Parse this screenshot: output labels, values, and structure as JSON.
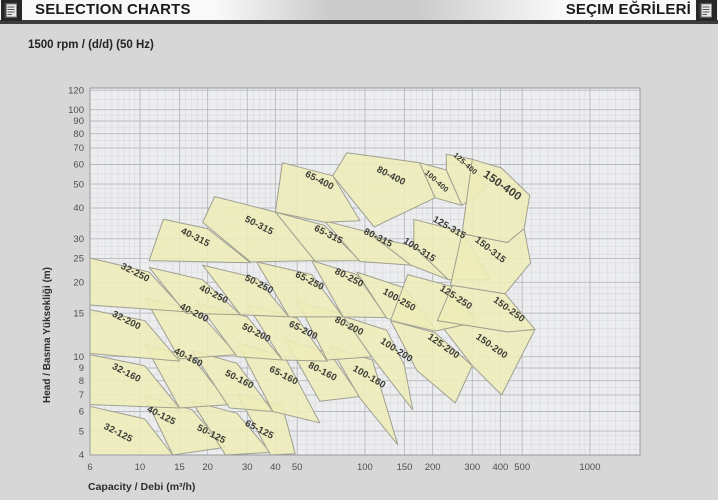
{
  "header": {
    "left_title": "SELECTION CHARTS",
    "right_title": "SEÇIM EĞRİLERİ",
    "left_icon": "document-chart-icon",
    "right_icon": "document-chart-icon"
  },
  "subtitle": "1500 rpm / (d/d) (50 Hz)",
  "colors": {
    "page_bg": "#d7d7d8",
    "plot_bg": "#ecedef",
    "grid_minor": "#d8d9dc",
    "grid_major": "#b9babd",
    "plot_border": "#9a9a9e",
    "region_fill": "#eeedb9",
    "region_stroke": "#a0a091",
    "region_label": "#3b3b35",
    "tick_label": "#4f4f4f",
    "axis_title": "#2e2e2e",
    "header_bar": "#3c3c3c"
  },
  "chart_data": {
    "type": "area",
    "title": "Pump selection chart 1500 rpm 50 Hz",
    "xlabel": "Capacity / Debi (m³/h)",
    "ylabel": "Head / Basma Yüksekliği (m)",
    "x_scale": "log",
    "y_scale": "log",
    "xlim": [
      6,
      1670
    ],
    "ylim": [
      3.93,
      122
    ],
    "grid": "on",
    "x_ticks": [
      6,
      10,
      15,
      20,
      30,
      40,
      50,
      100,
      150,
      200,
      300,
      400,
      500,
      1000
    ],
    "y_ticks": [
      4,
      5,
      6,
      7,
      8,
      9,
      10,
      15,
      20,
      25,
      30,
      40,
      50,
      60,
      70,
      80,
      90,
      100,
      120
    ],
    "regions": [
      {
        "label": "32-125",
        "points": [
          [
            6,
            6.3
          ],
          [
            10.5,
            5.6
          ],
          [
            14,
            4.0
          ],
          [
            6,
            4.0
          ]
        ],
        "label_at": [
          7.9,
          4.8
        ]
      },
      {
        "label": "40-125",
        "points": [
          [
            10.5,
            6.9
          ],
          [
            17,
            6.1
          ],
          [
            24,
            4.3
          ],
          [
            14,
            4.0
          ]
        ],
        "label_at": [
          12.3,
          5.65
        ]
      },
      {
        "label": "50-125",
        "points": [
          [
            17,
            6.6
          ],
          [
            27,
            5.9
          ],
          [
            38,
            4.1
          ],
          [
            24,
            4.0
          ]
        ],
        "label_at": [
          20.5,
          4.75
        ]
      },
      {
        "label": "65-125",
        "points": [
          [
            27,
            7.1
          ],
          [
            43,
            6.3
          ],
          [
            49,
            4.05
          ],
          [
            38,
            4.0
          ]
        ],
        "label_at": [
          33.5,
          4.95
        ]
      },
      {
        "label": "32-160",
        "points": [
          [
            6,
            10.2
          ],
          [
            10.5,
            9.2
          ],
          [
            15,
            6.2
          ],
          [
            6,
            6.4
          ]
        ],
        "label_at": [
          8.6,
          8.4
        ]
      },
      {
        "label": "40-160",
        "points": [
          [
            10.5,
            11.2
          ],
          [
            17,
            10.0
          ],
          [
            25,
            6.4
          ],
          [
            15,
            6.2
          ]
        ],
        "label_at": [
          16.2,
          9.7
        ]
      },
      {
        "label": "50-160",
        "points": [
          [
            17,
            10.6
          ],
          [
            27,
            9.4
          ],
          [
            39,
            6.0
          ],
          [
            25,
            6.2
          ]
        ],
        "label_at": [
          27.3,
          7.9
        ]
      },
      {
        "label": "65-160",
        "points": [
          [
            27,
            11.4
          ],
          [
            44,
            10.0
          ],
          [
            63,
            5.4
          ],
          [
            39,
            6.0
          ]
        ],
        "label_at": [
          43,
          8.2
        ]
      },
      {
        "label": "80-160",
        "points": [
          [
            44,
            11.8
          ],
          [
            70,
            10.3
          ],
          [
            95,
            6.9
          ],
          [
            63,
            6.6
          ]
        ],
        "label_at": [
          64,
          8.5
        ]
      },
      {
        "label": "100-160",
        "points": [
          [
            70,
            11.0
          ],
          [
            108,
            9.7
          ],
          [
            140,
            4.4
          ],
          [
            95,
            6.8
          ]
        ],
        "label_at": [
          103,
          8.1
        ],
        "angle": 30
      },
      {
        "label": "32-200",
        "points": [
          [
            6,
            15.5
          ],
          [
            10.5,
            14.0
          ],
          [
            15,
            9.6
          ],
          [
            6,
            10.3
          ]
        ],
        "label_at": [
          8.6,
          13.7
        ]
      },
      {
        "label": "40-200",
        "points": [
          [
            10.5,
            17.3
          ],
          [
            18,
            15.3
          ],
          [
            27,
            10.2
          ],
          [
            15,
            9.8
          ]
        ],
        "label_at": [
          17.2,
          14.7
        ]
      },
      {
        "label": "50-200",
        "points": [
          [
            18,
            16.5
          ],
          [
            30,
            14.5
          ],
          [
            43,
            9.7
          ],
          [
            27,
            10.0
          ]
        ],
        "label_at": [
          32.5,
          12.2
        ]
      },
      {
        "label": "65-200",
        "points": [
          [
            30,
            16.2
          ],
          [
            50,
            14.3
          ],
          [
            68,
            9.6
          ],
          [
            43,
            9.7
          ]
        ],
        "label_at": [
          52.5,
          12.5
        ]
      },
      {
        "label": "80-200",
        "points": [
          [
            50,
            16.8
          ],
          [
            80,
            14.8
          ],
          [
            108,
            10.0
          ],
          [
            68,
            9.7
          ]
        ],
        "label_at": [
          84,
          13.0
        ]
      },
      {
        "label": "100-200",
        "points": [
          [
            80,
            14.6
          ],
          [
            125,
            12.8
          ],
          [
            150,
            9.2
          ],
          [
            163,
            6.1
          ],
          [
            108,
            9.9
          ]
        ],
        "label_at": [
          136,
          10.4
        ],
        "angle": 33
      },
      {
        "label": "125-200",
        "points": [
          [
            130,
            14.0
          ],
          [
            205,
            12.5
          ],
          [
            300,
            9.2
          ],
          [
            252,
            6.5
          ],
          [
            170,
            8.8
          ]
        ],
        "label_at": [
          220,
          10.8
        ],
        "angle": 35
      },
      {
        "label": "150-200",
        "points": [
          [
            210,
            14.0
          ],
          [
            430,
            12.6
          ],
          [
            570,
            12.9
          ],
          [
            405,
            7.0
          ],
          [
            300,
            9.2
          ]
        ],
        "label_at": [
          360,
          10.8
        ],
        "angle": 35
      },
      {
        "label": "32-250",
        "points": [
          [
            6,
            25.1
          ],
          [
            11,
            22.0
          ],
          [
            16,
            15.2
          ],
          [
            6,
            16.2
          ]
        ],
        "label_at": [
          9.4,
          21.4
        ]
      },
      {
        "label": "40-250",
        "points": [
          [
            11,
            23.0
          ],
          [
            19,
            20.5
          ],
          [
            28,
            14.8
          ],
          [
            16,
            15.0
          ]
        ],
        "label_at": [
          21,
          17.5
        ]
      },
      {
        "label": "50-250",
        "points": [
          [
            19,
            23.5
          ],
          [
            33,
            20.8
          ],
          [
            46,
            14.5
          ],
          [
            28,
            14.8
          ]
        ],
        "label_at": [
          33.4,
          19.2
        ]
      },
      {
        "label": "65-250",
        "points": [
          [
            33,
            24.2
          ],
          [
            58,
            21.5
          ],
          [
            80,
            14.5
          ],
          [
            46,
            14.5
          ]
        ],
        "label_at": [
          56,
          19.8
        ]
      },
      {
        "label": "80-250",
        "points": [
          [
            58,
            24.5
          ],
          [
            92,
            21.5
          ],
          [
            125,
            14.4
          ],
          [
            80,
            14.5
          ]
        ],
        "label_at": [
          84,
          20.4
        ]
      },
      {
        "label": "100-250",
        "points": [
          [
            92,
            22.0
          ],
          [
            150,
            19.0
          ],
          [
            205,
            12.9
          ],
          [
            125,
            14.3
          ]
        ],
        "label_at": [
          140,
          16.6
        ],
        "angle": 30
      },
      {
        "label": "125-250",
        "points": [
          [
            155,
            21.5
          ],
          [
            245,
            19.2
          ],
          [
            310,
            13.8
          ],
          [
            205,
            12.7
          ],
          [
            130,
            14.0
          ]
        ],
        "label_at": [
          250,
          17.0
        ],
        "angle": 33
      },
      {
        "label": "150-250",
        "points": [
          [
            245,
            19.5
          ],
          [
            420,
            18.0
          ],
          [
            570,
            12.9
          ],
          [
            430,
            12.6
          ],
          [
            210,
            14.0
          ]
        ],
        "label_at": [
          430,
          15.2
        ],
        "angle": 36
      },
      {
        "label": "40-315",
        "points": [
          [
            12.7,
            36
          ],
          [
            20,
            33
          ],
          [
            31,
            24
          ],
          [
            11,
            24.5
          ]
        ],
        "label_at": [
          17.4,
          29.7
        ]
      },
      {
        "label": "50-315",
        "points": [
          [
            21.5,
            44.5
          ],
          [
            40,
            38.5
          ],
          [
            60,
            24.5
          ],
          [
            31,
            24.2
          ],
          [
            19,
            35
          ]
        ],
        "label_at": [
          33.4,
          33.2
        ]
      },
      {
        "label": "65-315",
        "points": [
          [
            40,
            38.5
          ],
          [
            66,
            34
          ],
          [
            95,
            24.5
          ],
          [
            60,
            24.4
          ]
        ],
        "label_at": [
          68,
          30.5
        ]
      },
      {
        "label": "80-315",
        "points": [
          [
            66,
            35.5
          ],
          [
            110,
            31.5
          ],
          [
            160,
            23.5
          ],
          [
            95,
            24.3
          ]
        ],
        "label_at": [
          113,
          29.6
        ]
      },
      {
        "label": "100-315",
        "points": [
          [
            110,
            30.5
          ],
          [
            165,
            28
          ],
          [
            235,
            20.5
          ],
          [
            160,
            23.5
          ]
        ],
        "label_at": [
          172,
          26.5
        ],
        "angle": 33
      },
      {
        "label": "125-315",
        "points": [
          [
            165,
            36
          ],
          [
            270,
            32
          ],
          [
            360,
            20.5
          ],
          [
            235,
            20.5
          ],
          [
            165,
            28
          ]
        ],
        "label_at": [
          234,
          32.6
        ],
        "angle": 30
      },
      {
        "label": "150-315",
        "points": [
          [
            270,
            31.5
          ],
          [
            430,
            29
          ],
          [
            510,
            33
          ],
          [
            545,
            24
          ],
          [
            420,
            18
          ],
          [
            240,
            19.5
          ]
        ],
        "label_at": [
          355,
          26.5
        ],
        "angle": 38
      },
      {
        "label": "65-400",
        "points": [
          [
            43,
            61
          ],
          [
            72,
            54
          ],
          [
            95,
            35.5
          ],
          [
            66,
            35
          ],
          [
            40,
            38.5
          ]
        ],
        "label_at": [
          62,
          50.5
        ]
      },
      {
        "label": "80-400",
        "points": [
          [
            83,
            67
          ],
          [
            175,
            61
          ],
          [
            205,
            44
          ],
          [
            110,
            33.5
          ],
          [
            72,
            54
          ]
        ],
        "label_at": [
          129,
          52.7
        ]
      },
      {
        "label": "100-400",
        "points": [
          [
            175,
            61
          ],
          [
            230,
            57
          ],
          [
            270,
            41
          ],
          [
            205,
            44
          ]
        ],
        "label_at": [
          205,
          50.5
        ],
        "angle": 42,
        "size": 7.5
      },
      {
        "label": "125-400",
        "points": [
          [
            230,
            66
          ],
          [
            300,
            63
          ],
          [
            345,
            48
          ],
          [
            270,
            41
          ],
          [
            230,
            57
          ]
        ],
        "label_at": [
          275,
          59.5
        ],
        "angle": 42,
        "size": 7.5
      },
      {
        "label": "150-400",
        "points": [
          [
            300,
            63
          ],
          [
            405,
            58
          ],
          [
            540,
            45
          ],
          [
            510,
            33
          ],
          [
            430,
            29
          ],
          [
            270,
            31.5
          ]
        ],
        "label_at": [
          400,
          48
        ],
        "angle": 35,
        "size": 11.5
      }
    ]
  }
}
